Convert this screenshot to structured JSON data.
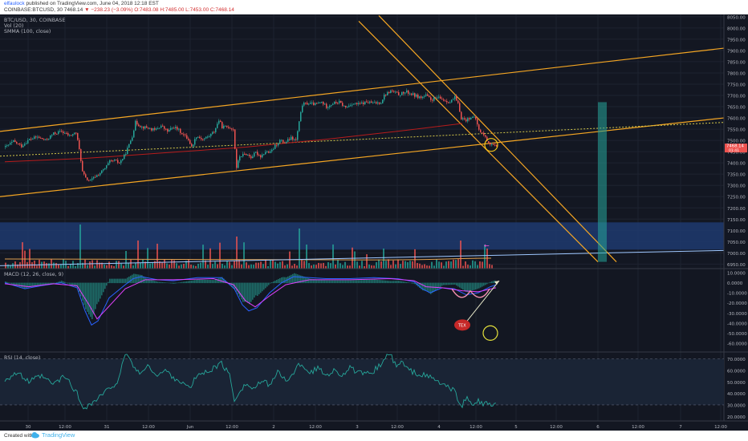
{
  "header": {
    "author": "elfaulock",
    "published_text": "published on TradingView.com, June 04, 2018 12:18 EST",
    "symbol_line": "COINBASE:BTCUSD, 30",
    "last": "7468.14",
    "change": "▼ −238.23 (−3.09%)",
    "ohlc": "O:7483.08 H:7485.00 L:7453.00 C:7468.14"
  },
  "footer": {
    "created_with": "Created with",
    "brand": "TradingView"
  },
  "chart_data": {
    "type": "candlestick",
    "title": "BTC/USD, 30, COINBASE",
    "indicators": [
      "Vol (20)",
      "SMMA (100, close)"
    ],
    "price_axis": [
      8050,
      8000,
      7950,
      7900,
      7850,
      7800,
      7750,
      7700,
      7650,
      7600,
      7550,
      7500,
      7450,
      7400,
      7350,
      7300,
      7250,
      7200,
      7150,
      7100,
      7050,
      7000,
      6950
    ],
    "price_axis_labels": [
      "8050.00",
      "8000.00",
      "7950.00",
      "7900.00",
      "7850.00",
      "7800.00",
      "7750.00",
      "7700.00",
      "7650.00",
      "7600.00",
      "7550.00",
      "7500.00",
      "7450.00",
      "7400.00",
      "7350.00",
      "7300.00",
      "7250.00",
      "7200.00",
      "7150.00",
      "7100.00",
      "7050.00",
      "7000.00",
      "6950.00"
    ],
    "ylim": [
      6930,
      8060
    ],
    "last_price_label": "7468.14",
    "last_price_sub": "01:41",
    "price_series": [
      [
        0,
        7470
      ],
      [
        10,
        7495
      ],
      [
        20,
        7475
      ],
      [
        30,
        7505
      ],
      [
        40,
        7515
      ],
      [
        50,
        7500
      ],
      [
        60,
        7530
      ],
      [
        70,
        7540
      ],
      [
        80,
        7520
      ],
      [
        88,
        7535
      ],
      [
        93,
        7440
      ],
      [
        96,
        7360
      ],
      [
        100,
        7330
      ],
      [
        106,
        7320
      ],
      [
        112,
        7340
      ],
      [
        118,
        7355
      ],
      [
        124,
        7375
      ],
      [
        130,
        7405
      ],
      [
        136,
        7410
      ],
      [
        142,
        7400
      ],
      [
        148,
        7430
      ],
      [
        154,
        7480
      ],
      [
        158,
        7520
      ],
      [
        162,
        7580
      ],
      [
        170,
        7560
      ],
      [
        178,
        7555
      ],
      [
        186,
        7545
      ],
      [
        194,
        7565
      ],
      [
        202,
        7540
      ],
      [
        210,
        7560
      ],
      [
        216,
        7545
      ],
      [
        222,
        7525
      ],
      [
        228,
        7505
      ],
      [
        232,
        7470
      ],
      [
        238,
        7520
      ],
      [
        246,
        7505
      ],
      [
        254,
        7520
      ],
      [
        260,
        7540
      ],
      [
        266,
        7590
      ],
      [
        270,
        7560
      ],
      [
        278,
        7560
      ],
      [
        284,
        7550
      ],
      [
        288,
        7380
      ],
      [
        292,
        7430
      ],
      [
        300,
        7440
      ],
      [
        306,
        7425
      ],
      [
        312,
        7445
      ],
      [
        318,
        7430
      ],
      [
        324,
        7450
      ],
      [
        330,
        7445
      ],
      [
        336,
        7475
      ],
      [
        342,
        7500
      ],
      [
        348,
        7490
      ],
      [
        356,
        7510
      ],
      [
        362,
        7500
      ],
      [
        366,
        7580
      ],
      [
        370,
        7660
      ],
      [
        378,
        7665
      ],
      [
        386,
        7660
      ],
      [
        394,
        7670
      ],
      [
        400,
        7650
      ],
      [
        408,
        7665
      ],
      [
        416,
        7670
      ],
      [
        424,
        7645
      ],
      [
        432,
        7665
      ],
      [
        440,
        7660
      ],
      [
        450,
        7670
      ],
      [
        460,
        7665
      ],
      [
        468,
        7670
      ],
      [
        472,
        7700
      ],
      [
        480,
        7720
      ],
      [
        490,
        7705
      ],
      [
        500,
        7715
      ],
      [
        510,
        7700
      ],
      [
        518,
        7690
      ],
      [
        524,
        7700
      ],
      [
        530,
        7680
      ],
      [
        538,
        7690
      ],
      [
        546,
        7680
      ],
      [
        554,
        7670
      ],
      [
        560,
        7690
      ],
      [
        564,
        7660
      ],
      [
        568,
        7600
      ],
      [
        574,
        7590
      ],
      [
        580,
        7605
      ],
      [
        586,
        7595
      ],
      [
        590,
        7545
      ],
      [
        596,
        7525
      ],
      [
        600,
        7500
      ],
      [
        604,
        7485
      ],
      [
        608,
        7478
      ],
      [
        612,
        7468
      ]
    ],
    "smma_series": [
      [
        0,
        7405
      ],
      [
        100,
        7420
      ],
      [
        200,
        7445
      ],
      [
        300,
        7470
      ],
      [
        400,
        7505
      ],
      [
        500,
        7545
      ],
      [
        570,
        7575
      ]
    ],
    "volume_axis": [
      7150,
      7100,
      7050
    ],
    "volume_axis_labels": [
      "7150.00",
      "7100.00",
      "7050.00"
    ],
    "macd_label": "MACD (12, 26, close, 9)",
    "macd_axis_labels": [
      "10.0000",
      "0.0000",
      "-10.0000",
      "-20.0000",
      "-30.0000",
      "-40.0000",
      "-50.0000",
      "-60.0000"
    ],
    "macd_axis_values": [
      10,
      0,
      -10,
      -20,
      -30,
      -40,
      -50,
      -60
    ],
    "macd_ylim": [
      -68,
      14
    ],
    "macd_line": [
      [
        0,
        0
      ],
      [
        25,
        -6
      ],
      [
        45,
        -3
      ],
      [
        70,
        0
      ],
      [
        90,
        -5
      ],
      [
        100,
        -28
      ],
      [
        108,
        -42
      ],
      [
        116,
        -38
      ],
      [
        130,
        -15
      ],
      [
        150,
        -2
      ],
      [
        160,
        4
      ],
      [
        170,
        6
      ],
      [
        190,
        3
      ],
      [
        210,
        2
      ],
      [
        240,
        5
      ],
      [
        270,
        5
      ],
      [
        286,
        -6
      ],
      [
        296,
        -22
      ],
      [
        304,
        -28
      ],
      [
        314,
        -25
      ],
      [
        330,
        -10
      ],
      [
        345,
        0
      ],
      [
        360,
        6
      ],
      [
        380,
        5
      ],
      [
        400,
        4
      ],
      [
        430,
        4
      ],
      [
        460,
        5
      ],
      [
        490,
        4
      ],
      [
        510,
        1
      ],
      [
        520,
        -6
      ],
      [
        530,
        -10
      ],
      [
        545,
        -5
      ],
      [
        560,
        -6
      ],
      [
        575,
        -12
      ],
      [
        590,
        -10
      ],
      [
        605,
        -4
      ],
      [
        612,
        -2
      ]
    ],
    "signal_line": [
      [
        0,
        -1
      ],
      [
        30,
        -4
      ],
      [
        60,
        -1
      ],
      [
        90,
        -3
      ],
      [
        105,
        -22
      ],
      [
        115,
        -36
      ],
      [
        128,
        -25
      ],
      [
        150,
        -6
      ],
      [
        175,
        3
      ],
      [
        210,
        3
      ],
      [
        260,
        4
      ],
      [
        285,
        -2
      ],
      [
        300,
        -18
      ],
      [
        312,
        -24
      ],
      [
        330,
        -13
      ],
      [
        350,
        -2
      ],
      [
        380,
        3
      ],
      [
        430,
        3
      ],
      [
        480,
        4
      ],
      [
        510,
        2
      ],
      [
        525,
        -4
      ],
      [
        545,
        -5
      ],
      [
        570,
        -8
      ],
      [
        590,
        -9
      ],
      [
        612,
        -5
      ]
    ],
    "macd_annotation": "TEX",
    "rsi_label": "RSI (14, close)",
    "rsi_axis_labels": [
      "70.0000",
      "60.0000",
      "50.0000",
      "40.0000",
      "30.0000",
      "20.0000"
    ],
    "rsi_axis_values": [
      70,
      60,
      50,
      40,
      30,
      20
    ],
    "rsi_ylim": [
      16,
      76
    ],
    "rsi_band": [
      30,
      70
    ],
    "rsi_series": [
      [
        0,
        52
      ],
      [
        15,
        58
      ],
      [
        30,
        50
      ],
      [
        45,
        55
      ],
      [
        60,
        48
      ],
      [
        75,
        55
      ],
      [
        90,
        40
      ],
      [
        95,
        30
      ],
      [
        100,
        28
      ],
      [
        110,
        32
      ],
      [
        120,
        38
      ],
      [
        130,
        44
      ],
      [
        140,
        50
      ],
      [
        150,
        72
      ],
      [
        155,
        74
      ],
      [
        160,
        62
      ],
      [
        170,
        58
      ],
      [
        180,
        64
      ],
      [
        190,
        55
      ],
      [
        200,
        60
      ],
      [
        210,
        54
      ],
      [
        220,
        50
      ],
      [
        230,
        44
      ],
      [
        240,
        56
      ],
      [
        250,
        58
      ],
      [
        260,
        62
      ],
      [
        270,
        66
      ],
      [
        280,
        56
      ],
      [
        286,
        34
      ],
      [
        292,
        42
      ],
      [
        300,
        48
      ],
      [
        310,
        44
      ],
      [
        320,
        50
      ],
      [
        330,
        48
      ],
      [
        340,
        58
      ],
      [
        350,
        52
      ],
      [
        360,
        56
      ],
      [
        366,
        66
      ],
      [
        372,
        64
      ],
      [
        380,
        58
      ],
      [
        390,
        62
      ],
      [
        400,
        56
      ],
      [
        410,
        60
      ],
      [
        420,
        56
      ],
      [
        430,
        62
      ],
      [
        440,
        58
      ],
      [
        450,
        56
      ],
      [
        460,
        60
      ],
      [
        470,
        66
      ],
      [
        476,
        74
      ],
      [
        482,
        72
      ],
      [
        488,
        62
      ],
      [
        494,
        68
      ],
      [
        500,
        62
      ],
      [
        510,
        58
      ],
      [
        520,
        56
      ],
      [
        530,
        54
      ],
      [
        540,
        50
      ],
      [
        550,
        46
      ],
      [
        560,
        42
      ],
      [
        565,
        34
      ],
      [
        570,
        30
      ],
      [
        575,
        36
      ],
      [
        580,
        32
      ],
      [
        586,
        30
      ],
      [
        590,
        34
      ],
      [
        596,
        30
      ],
      [
        602,
        31
      ],
      [
        612,
        29
      ]
    ],
    "x_axis_labels": [
      "30",
      "12:00",
      "31",
      "12:00",
      "Jun",
      "12:00",
      "2",
      "12:00",
      "3",
      "12:00",
      "4",
      "12:00",
      "5",
      "12:00",
      "6",
      "12:00",
      "7",
      "12:00"
    ],
    "x_axis_positions": [
      35,
      81,
      133,
      185,
      237,
      289,
      341,
      393,
      445,
      495,
      547,
      593,
      643,
      693,
      745,
      795,
      848,
      898
    ],
    "trend_lines": "ascending channel, descending channel, dotted mid-line, blue horizontal support line",
    "colors": {
      "background": "#131722",
      "up_candle": "#26a69a",
      "down_candle": "#ef5350",
      "trendline": "#f5a623",
      "smma": "#b71c1c",
      "macd": "#2962ff",
      "signal": "#e040fb",
      "rsi": "#26a69a",
      "volume_zone": "#1e3a6e"
    }
  }
}
